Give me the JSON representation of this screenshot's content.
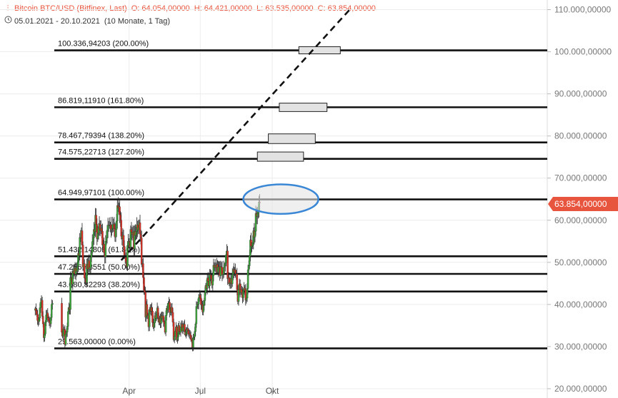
{
  "header": {
    "title": "Bitcoin BTC/USD (Bitfinex, Last)",
    "open": "O: 64.054,00000",
    "high": "H: 64.421,00000",
    "low": "L: 63.535,00000",
    "close": "C: 63.854,00000",
    "range": "05.01.2021 - 20.10.2021",
    "period": "(10 Monate, 1 Tag)"
  },
  "colors": {
    "up": "#3aa63a",
    "down": "#d93025",
    "accent": "#e8553e",
    "highlight": "#3a87d6"
  },
  "chart_data": {
    "type": "candlestick",
    "ylim": [
      20000,
      110000
    ],
    "y_ticks": [
      "110.000,00000",
      "100.000,00000",
      "90.000,00000",
      "80.000,00000",
      "70.000,00000",
      "60.000,00000",
      "50.000,00000",
      "40.000,00000",
      "30.000,00000",
      "20.000,00000"
    ],
    "y_tick_values": [
      110000,
      100000,
      90000,
      80000,
      70000,
      60000,
      50000,
      40000,
      30000,
      20000
    ],
    "x_ticks": [
      "Apr",
      "Jul",
      "Okt"
    ],
    "x_tick_days": [
      86,
      177,
      269
    ],
    "last_price": "63.854,00000",
    "last_value": 63854,
    "fib_levels": [
      {
        "label": "100.336,94203 (200.00%)",
        "value": 100336.94
      },
      {
        "label": "86.819,11910 (161.80%)",
        "value": 86819.12
      },
      {
        "label": "78.467,79394 (138.20%)",
        "value": 78467.79
      },
      {
        "label": "74.575,22713 (127.20%)",
        "value": 74575.23
      },
      {
        "label": "64.949,97101 (100.00%)",
        "value": 64949.97
      },
      {
        "label": "51.432,14809 (61.80%)",
        "value": 51432.15
      },
      {
        "label": "47.256,48551 (50.00%)",
        "value": 47256.49
      },
      {
        "label": "43.080,82293 (38.20%)",
        "value": 43080.82
      },
      {
        "label": "29.563,00000 (0.00%)",
        "value": 29563.0
      }
    ],
    "trendline": {
      "start_day": 76,
      "start_value": 50500,
      "end_day": 368,
      "end_value": 110000
    },
    "target_boxes": [
      {
        "start_day": 303,
        "end_day": 356,
        "low": 99500,
        "high": 101200
      },
      {
        "start_day": 278,
        "end_day": 339,
        "low": 85800,
        "high": 87800
      },
      {
        "start_day": 264,
        "end_day": 324,
        "low": 78200,
        "high": 80500
      },
      {
        "start_day": 250,
        "end_day": 309,
        "low": 74000,
        "high": 76200
      }
    ],
    "ellipse": {
      "center_day": 280,
      "center_value": 65000,
      "half_width_days": 30,
      "half_height_value": 3500
    },
    "closes": [
      [
        -34,
        39000
      ],
      [
        -33,
        38500
      ],
      [
        -32,
        37600
      ],
      [
        -31,
        36200
      ],
      [
        -30,
        35900
      ],
      [
        -29,
        36800
      ],
      [
        -28,
        39200
      ],
      [
        -27,
        40500
      ],
      [
        -26,
        41000
      ],
      [
        -25,
        37200
      ],
      [
        -24,
        35400
      ],
      [
        -23,
        32100
      ],
      [
        -22,
        33000
      ],
      [
        -21,
        35800
      ],
      [
        -20,
        37500
      ],
      [
        -19,
        38000
      ],
      [
        -18,
        36800
      ],
      [
        -17,
        36200
      ],
      [
        -16,
        35900
      ],
      [
        -15,
        35400
      ],
      [
        -14,
        36900
      ],
      [
        -13,
        40000
      ],
      [
        -12,
        40300
      ],
      [
        0,
        33400
      ],
      [
        1,
        32500
      ],
      [
        2,
        34200
      ],
      [
        3,
        34000
      ],
      [
        4,
        30500
      ],
      [
        5,
        33000
      ],
      [
        6,
        33400
      ],
      [
        7,
        34800
      ],
      [
        8,
        38300
      ],
      [
        9,
        39300
      ],
      [
        10,
        38800
      ],
      [
        11,
        46400
      ],
      [
        12,
        46500
      ],
      [
        13,
        44800
      ],
      [
        14,
        47900
      ],
      [
        15,
        47400
      ],
      [
        16,
        48600
      ],
      [
        17,
        47200
      ],
      [
        18,
        48700
      ],
      [
        19,
        47900
      ],
      [
        20,
        49100
      ],
      [
        21,
        52100
      ],
      [
        22,
        51600
      ],
      [
        23,
        55900
      ],
      [
        24,
        55800
      ],
      [
        25,
        57500
      ],
      [
        26,
        54100
      ],
      [
        27,
        48900
      ],
      [
        28,
        49700
      ],
      [
        29,
        46300
      ],
      [
        30,
        46100
      ],
      [
        31,
        45200
      ],
      [
        32,
        49600
      ],
      [
        33,
        48400
      ],
      [
        34,
        50400
      ],
      [
        35,
        48400
      ],
      [
        36,
        48800
      ],
      [
        37,
        51200
      ],
      [
        38,
        52300
      ],
      [
        39,
        54900
      ],
      [
        40,
        55800
      ],
      [
        41,
        57800
      ],
      [
        42,
        57300
      ],
      [
        43,
        61200
      ],
      [
        44,
        59000
      ],
      [
        45,
        55600
      ],
      [
        46,
        56900
      ],
      [
        47,
        58200
      ],
      [
        48,
        59100
      ],
      [
        49,
        57600
      ],
      [
        50,
        58100
      ],
      [
        51,
        57400
      ],
      [
        52,
        54100
      ],
      [
        53,
        54300
      ],
      [
        54,
        52300
      ],
      [
        55,
        51300
      ],
      [
        56,
        55000
      ],
      [
        57,
        55800
      ],
      [
        58,
        57600
      ],
      [
        59,
        58800
      ],
      [
        60,
        58800
      ],
      [
        61,
        58700
      ],
      [
        62,
        58900
      ],
      [
        63,
        57700
      ],
      [
        64,
        58000
      ],
      [
        65,
        59000
      ],
      [
        66,
        59100
      ],
      [
        67,
        58000
      ],
      [
        68,
        56000
      ],
      [
        69,
        57800
      ],
      [
        70,
        59800
      ],
      [
        71,
        63500
      ],
      [
        72,
        62900
      ],
      [
        73,
        63200
      ],
      [
        74,
        61300
      ],
      [
        75,
        60000
      ],
      [
        76,
        56200
      ],
      [
        77,
        55600
      ],
      [
        78,
        56400
      ],
      [
        79,
        53800
      ],
      [
        80,
        51700
      ],
      [
        81,
        51200
      ],
      [
        82,
        50100
      ],
      [
        83,
        49000
      ],
      [
        84,
        54000
      ],
      [
        85,
        55000
      ],
      [
        86,
        54900
      ],
      [
        87,
        53600
      ],
      [
        88,
        57800
      ],
      [
        89,
        57200
      ],
      [
        90,
        56600
      ],
      [
        91,
        57200
      ],
      [
        92,
        53200
      ],
      [
        93,
        57400
      ],
      [
        94,
        56400
      ],
      [
        95,
        57300
      ],
      [
        96,
        58900
      ],
      [
        97,
        57700
      ],
      [
        98,
        58200
      ],
      [
        99,
        59400
      ],
      [
        100,
        56700
      ],
      [
        101,
        55800
      ],
      [
        102,
        49500
      ],
      [
        103,
        49700
      ],
      [
        104,
        46400
      ],
      [
        105,
        43400
      ],
      [
        106,
        42900
      ],
      [
        107,
        37000
      ],
      [
        108,
        40000
      ],
      [
        109,
        37300
      ],
      [
        110,
        37500
      ],
      [
        111,
        34700
      ],
      [
        112,
        38800
      ],
      [
        113,
        38300
      ],
      [
        114,
        39300
      ],
      [
        115,
        38400
      ],
      [
        116,
        35700
      ],
      [
        117,
        34600
      ],
      [
        118,
        35600
      ],
      [
        119,
        37300
      ],
      [
        120,
        36700
      ],
      [
        121,
        37600
      ],
      [
        122,
        39200
      ],
      [
        123,
        36900
      ],
      [
        124,
        35800
      ],
      [
        125,
        36700
      ],
      [
        126,
        35500
      ],
      [
        127,
        37300
      ],
      [
        128,
        36700
      ],
      [
        129,
        37300
      ],
      [
        130,
        35900
      ],
      [
        131,
        35500
      ],
      [
        132,
        33400
      ],
      [
        133,
        37400
      ],
      [
        134,
        39100
      ],
      [
        135,
        38700
      ],
      [
        136,
        40200
      ],
      [
        137,
        40500
      ],
      [
        138,
        38100
      ],
      [
        139,
        38200
      ],
      [
        140,
        39300
      ],
      [
        141,
        38100
      ],
      [
        142,
        35800
      ],
      [
        143,
        31600
      ],
      [
        144,
        32500
      ],
      [
        145,
        33700
      ],
      [
        146,
        34700
      ],
      [
        147,
        31600
      ],
      [
        148,
        32300
      ],
      [
        149,
        35000
      ],
      [
        150,
        33600
      ],
      [
        151,
        33400
      ],
      [
        152,
        34700
      ],
      [
        153,
        35300
      ],
      [
        154,
        33700
      ],
      [
        155,
        34600
      ],
      [
        156,
        35300
      ],
      [
        157,
        33600
      ],
      [
        158,
        32800
      ],
      [
        159,
        33500
      ],
      [
        160,
        34200
      ],
      [
        161,
        33800
      ],
      [
        162,
        32900
      ],
      [
        163,
        33100
      ],
      [
        164,
        32700
      ],
      [
        165,
        31800
      ],
      [
        166,
        31400
      ],
      [
        167,
        29800
      ],
      [
        168,
        32100
      ],
      [
        169,
        32300
      ],
      [
        170,
        33600
      ],
      [
        171,
        35400
      ],
      [
        172,
        39500
      ],
      [
        173,
        40000
      ],
      [
        174,
        40100
      ],
      [
        175,
        41600
      ],
      [
        176,
        42200
      ],
      [
        177,
        41500
      ],
      [
        178,
        39900
      ],
      [
        179,
        40000
      ],
      [
        180,
        38200
      ],
      [
        181,
        39800
      ],
      [
        182,
        40900
      ],
      [
        183,
        42800
      ],
      [
        184,
        44500
      ],
      [
        185,
        43800
      ],
      [
        186,
        46300
      ],
      [
        187,
        45500
      ],
      [
        188,
        44400
      ],
      [
        189,
        47100
      ],
      [
        190,
        47000
      ],
      [
        191,
        46000
      ],
      [
        192,
        44600
      ],
      [
        193,
        46900
      ],
      [
        194,
        49300
      ],
      [
        195,
        48800
      ],
      [
        196,
        49200
      ],
      [
        197,
        48700
      ],
      [
        198,
        49500
      ],
      [
        199,
        47700
      ],
      [
        200,
        48900
      ],
      [
        201,
        49000
      ],
      [
        202,
        46800
      ],
      [
        203,
        49000
      ],
      [
        204,
        48800
      ],
      [
        205,
        47000
      ],
      [
        206,
        47200
      ],
      [
        207,
        48800
      ],
      [
        208,
        49300
      ],
      [
        209,
        49900
      ],
      [
        210,
        51800
      ],
      [
        211,
        52700
      ],
      [
        212,
        46100
      ],
      [
        213,
        46400
      ],
      [
        214,
        44900
      ],
      [
        215,
        45200
      ],
      [
        216,
        46100
      ],
      [
        217,
        44900
      ],
      [
        218,
        47100
      ],
      [
        219,
        48300
      ],
      [
        220,
        47700
      ],
      [
        221,
        48200
      ],
      [
        222,
        47300
      ],
      [
        223,
        47300
      ],
      [
        224,
        43500
      ],
      [
        225,
        40700
      ],
      [
        226,
        43600
      ],
      [
        227,
        44900
      ],
      [
        228,
        42800
      ],
      [
        229,
        43600
      ],
      [
        230,
        42800
      ],
      [
        231,
        41600
      ],
      [
        232,
        43200
      ],
      [
        233,
        43900
      ],
      [
        234,
        43500
      ],
      [
        235,
        41000
      ],
      [
        236,
        41500
      ],
      [
        237,
        43800
      ],
      [
        238,
        48200
      ],
      [
        239,
        49200
      ],
      [
        240,
        51500
      ],
      [
        241,
        55300
      ],
      [
        242,
        53800
      ],
      [
        243,
        53900
      ],
      [
        244,
        54600
      ],
      [
        245,
        57500
      ],
      [
        246,
        56000
      ],
      [
        247,
        57400
      ],
      [
        248,
        61600
      ],
      [
        249,
        60900
      ],
      [
        250,
        61500
      ],
      [
        251,
        62000
      ],
      [
        252,
        64300
      ],
      [
        253,
        64200
      ]
    ]
  }
}
